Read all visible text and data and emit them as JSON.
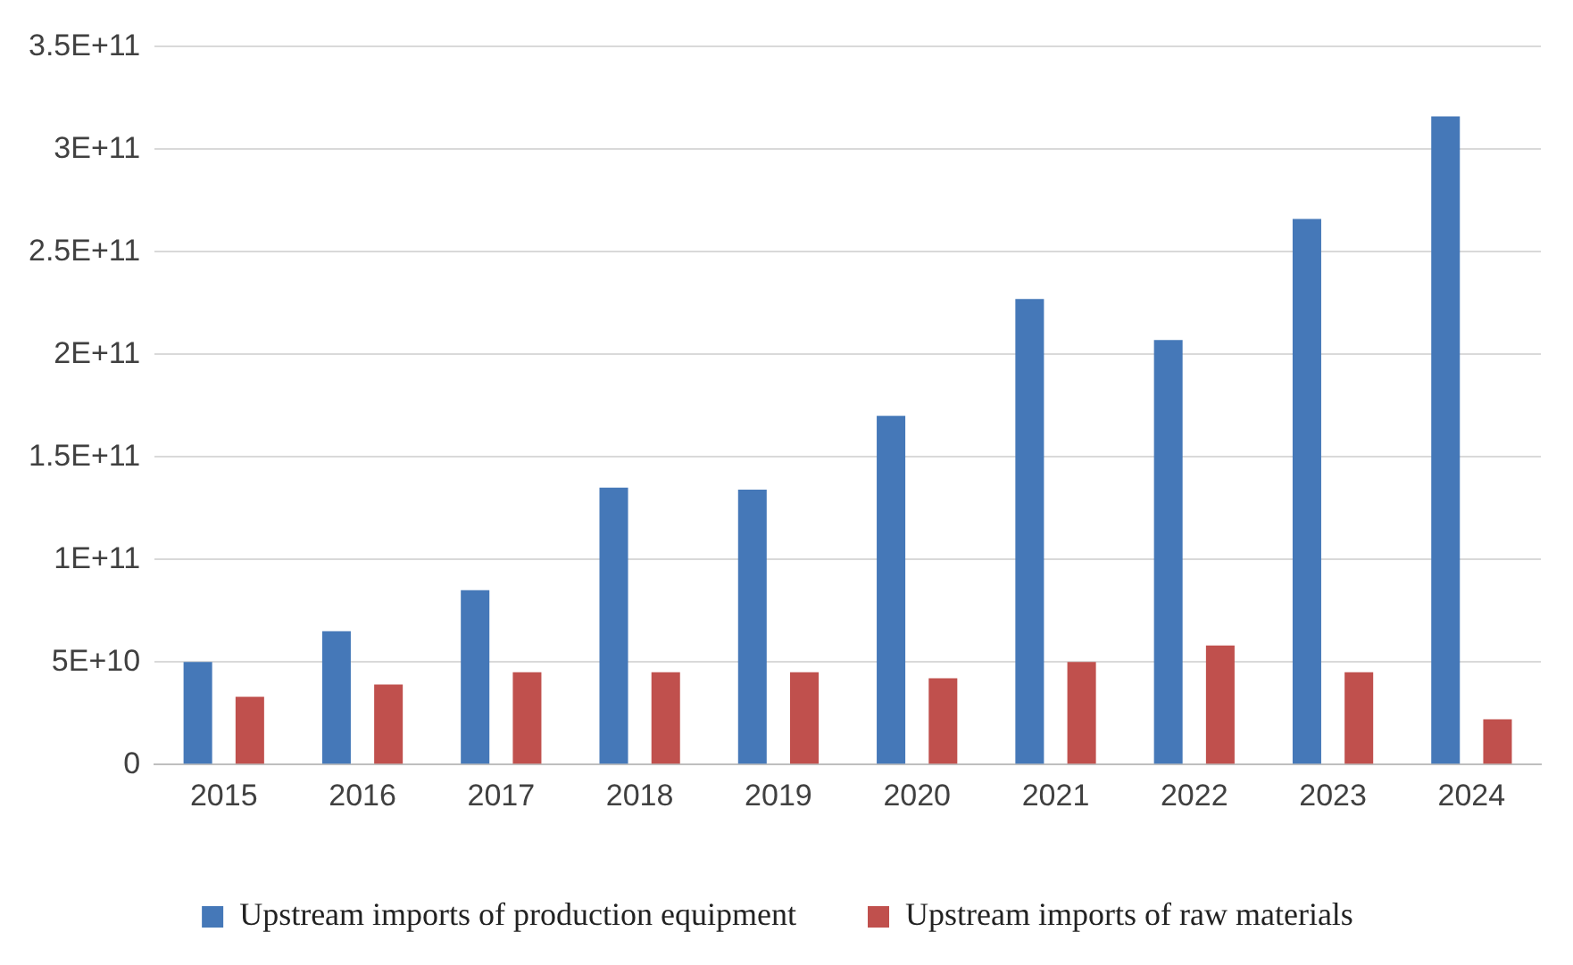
{
  "chart_data": {
    "type": "bar",
    "categories": [
      "2015",
      "2016",
      "2017",
      "2018",
      "2019",
      "2020",
      "2021",
      "2022",
      "2023",
      "2024"
    ],
    "series": [
      {
        "name": "Upstream imports of production equipment",
        "color": "#4578b8",
        "values": [
          50000000000.0,
          65000000000.0,
          85000000000.0,
          135000000000.0,
          134000000000.0,
          170000000000.0,
          227000000000.0,
          207000000000.0,
          266000000000.0,
          316000000000.0
        ]
      },
      {
        "name": "Upstream imports of raw materials",
        "color": "#c0504d",
        "values": [
          33000000000.0,
          39000000000.0,
          45000000000.0,
          45000000000.0,
          45000000000.0,
          42000000000.0,
          50000000000.0,
          58000000000.0,
          45000000000.0,
          22000000000.0
        ]
      }
    ],
    "ylim": [
      0,
      350000000000.0
    ],
    "yticks": [
      0,
      {
        "value": 50000000000.0,
        "label": "5E+10"
      },
      {
        "value": 100000000000.0,
        "label": "1E+11"
      },
      {
        "value": 150000000000.0,
        "label": "1.5E+11"
      },
      {
        "value": 200000000000.0,
        "label": "2E+11"
      },
      {
        "value": 250000000000.0,
        "label": "2.5E+11"
      },
      {
        "value": 300000000000.0,
        "label": "3E+11"
      },
      {
        "value": 350000000000.0,
        "label": "3.5E+11"
      }
    ],
    "grid": "y",
    "legend": "bottom"
  }
}
